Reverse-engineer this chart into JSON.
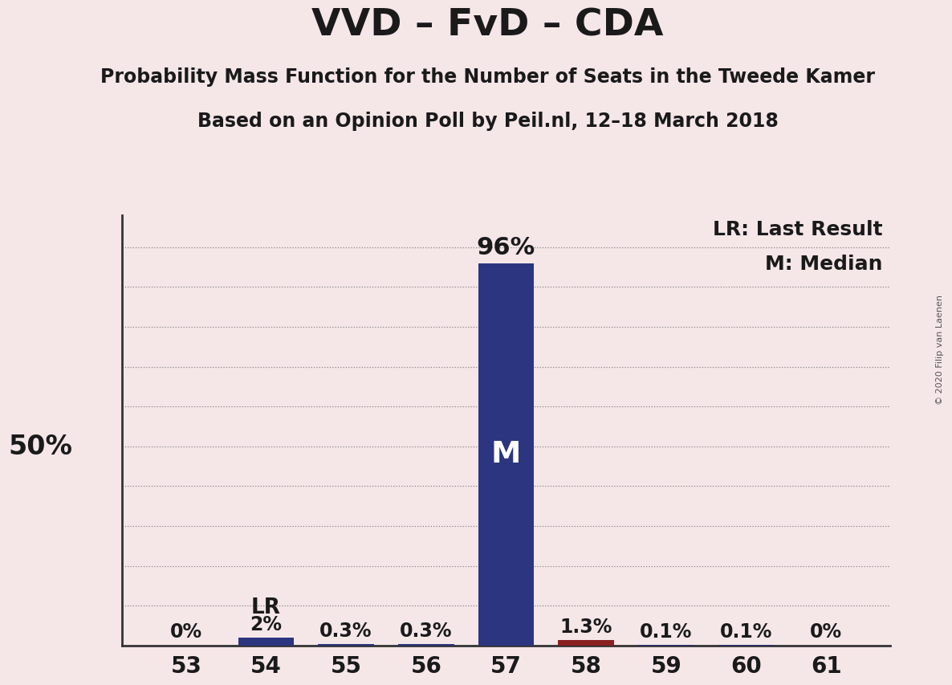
{
  "title": "VVD – FvD – CDA",
  "subtitle1": "Probability Mass Function for the Number of Seats in the Tweede Kamer",
  "subtitle2": "Based on an Opinion Poll by Peil.nl, 12–18 March 2018",
  "copyright": "© 2020 Filip van Laenen",
  "categories": [
    53,
    54,
    55,
    56,
    57,
    58,
    59,
    60,
    61
  ],
  "values": [
    0.0,
    2.0,
    0.3,
    0.3,
    96.0,
    1.3,
    0.1,
    0.1,
    0.0
  ],
  "labels": [
    "0%",
    "2%",
    "0.3%",
    "0.3%",
    "96%",
    "1.3%",
    "0.1%",
    "0.1%",
    "0%"
  ],
  "bar_colors": [
    "#2b3580",
    "#2b3580",
    "#2b3580",
    "#2b3580",
    "#2b3580",
    "#8b2020",
    "#2b3580",
    "#2b3580",
    "#2b3580"
  ],
  "median_bar": 57,
  "last_result_bar": 54,
  "median_label_color": "#ffffff",
  "text_color": "#1a1a1a",
  "background_color": "#f5e6e8",
  "ylabel_50": "50%",
  "ylim": [
    0,
    108
  ],
  "grid_lines": [
    10,
    20,
    30,
    40,
    50,
    60,
    70,
    80,
    90,
    100
  ],
  "legend_lr": "LR: Last Result",
  "legend_m": "M: Median",
  "bar_width": 0.7,
  "title_fontsize": 34,
  "subtitle_fontsize": 17,
  "label_fontsize": 17,
  "tick_fontsize": 20,
  "ylabel_fontsize": 24,
  "legend_fontsize": 17,
  "lr_label": "LR",
  "m_label": "M",
  "copyright_fontsize": 8
}
